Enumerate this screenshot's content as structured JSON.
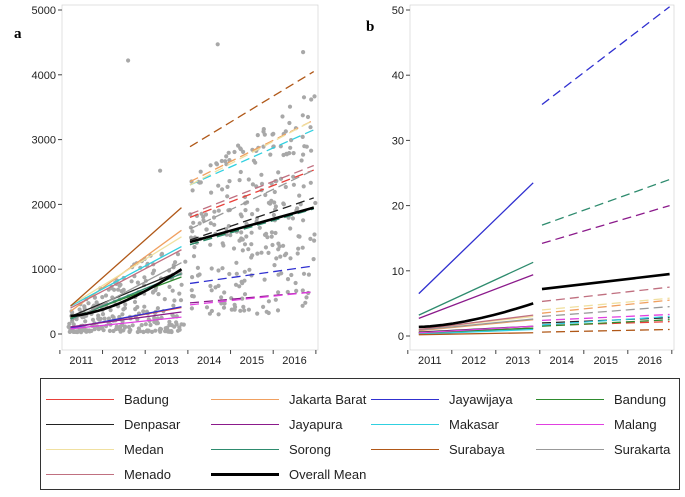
{
  "chart_data": [
    {
      "type": "scatter",
      "panel_label": "a",
      "title": "",
      "xlabel": "",
      "ylabel": "",
      "x_ticks": [
        "2011",
        "2012",
        "2013",
        "2014",
        "2015",
        "2016"
      ],
      "y_ticks": [
        "0",
        "1000",
        "2000",
        "3000",
        "4000",
        "5000"
      ],
      "ylim": [
        0,
        5000
      ],
      "xlim": [
        2010.55,
        2016.55
      ],
      "break_at": 2013.5,
      "grid": false,
      "series": [
        {
          "name": "Badung",
          "color": "#e8403a",
          "pre": [
            90,
            410
          ],
          "post": [
            1800,
            2530
          ]
        },
        {
          "name": "Jakarta Barat",
          "color": "#f0a060",
          "pre": [
            350,
            1600
          ],
          "post": [
            2350,
            3300
          ]
        },
        {
          "name": "Jayawijaya",
          "color": "#3030d0",
          "pre": [
            90,
            420
          ],
          "post": [
            780,
            1050
          ]
        },
        {
          "name": "Bandung",
          "color": "#2e8b2e",
          "pre": [
            240,
            880
          ],
          "post": [
            1380,
            1960
          ]
        },
        {
          "name": "Denpasar",
          "color": "#222222",
          "pre": [
            270,
            980
          ],
          "post": [
            1450,
            2100
          ]
        },
        {
          "name": "Jayapura",
          "color": "#8b1a8b",
          "pre": [
            110,
            340
          ],
          "post": [
            480,
            650
          ]
        },
        {
          "name": "Makasar",
          "color": "#30d0e0",
          "pre": [
            430,
            1350
          ],
          "post": [
            2300,
            3150
          ]
        },
        {
          "name": "Malang",
          "color": "#e040e0",
          "pre": [
            80,
            260
          ],
          "post": [
            450,
            650
          ]
        },
        {
          "name": "Medan",
          "color": "#f0e0a0",
          "pre": [
            440,
            1500
          ],
          "post": [
            2300,
            3300
          ]
        },
        {
          "name": "Sorong",
          "color": "#2e8b6e",
          "pre": [
            230,
            930
          ],
          "post": [
            1380,
            1930
          ]
        },
        {
          "name": "Surabaya",
          "color": "#b05818",
          "pre": [
            430,
            1950
          ],
          "post": [
            2890,
            4050
          ]
        },
        {
          "name": "Surakarta",
          "color": "#999999",
          "pre": [
            200,
            1100
          ],
          "post": [
            1620,
            2530
          ]
        },
        {
          "name": "Menado",
          "color": "#c07080",
          "pre": [
            400,
            1300
          ],
          "post": [
            1850,
            2600
          ]
        },
        {
          "name": "Overall Mean",
          "color": "#000000",
          "pre": [
            280,
            1000
          ],
          "post": [
            1420,
            1950
          ],
          "curved": true
        }
      ]
    },
    {
      "type": "line",
      "panel_label": "b",
      "title": "",
      "xlabel": "",
      "ylabel": "",
      "x_ticks": [
        "2011",
        "2012",
        "2013",
        "2014",
        "2015",
        "2016"
      ],
      "y_ticks": [
        "0",
        "10",
        "20",
        "30",
        "40",
        "50"
      ],
      "ylim": [
        0,
        50
      ],
      "xlim": [
        2010.55,
        2016.55
      ],
      "break_at": 2013.5,
      "grid": false,
      "series": [
        {
          "name": "Badung",
          "color": "#e8403a",
          "pre": [
            0.4,
            1.2
          ],
          "post": [
            1.6,
            2.2
          ]
        },
        {
          "name": "Jakarta Barat",
          "color": "#f0a060",
          "pre": [
            0.8,
            2.5
          ],
          "post": [
            3.5,
            5.5
          ]
        },
        {
          "name": "Jayawijaya",
          "color": "#3030d0",
          "pre": [
            6.5,
            23.5
          ],
          "post": [
            35.5,
            50.5
          ]
        },
        {
          "name": "Bandung",
          "color": "#2e8b2e",
          "pre": [
            0.5,
            1.2
          ],
          "post": [
            1.5,
            2.5
          ]
        },
        {
          "name": "Denpasar",
          "color": "#222222",
          "pre": [
            0.6,
            1.5
          ],
          "post": [
            2.0,
            2.8
          ]
        },
        {
          "name": "Jayapura",
          "color": "#8b1a8b",
          "pre": [
            2.7,
            9.4
          ],
          "post": [
            14.2,
            20.0
          ]
        },
        {
          "name": "Makasar",
          "color": "#30d0e0",
          "pre": [
            0.3,
            1.0
          ],
          "post": [
            1.7,
            3.0
          ]
        },
        {
          "name": "Malang",
          "color": "#e040e0",
          "pre": [
            0.5,
            1.5
          ],
          "post": [
            2.4,
            3.3
          ]
        },
        {
          "name": "Medan",
          "color": "#f0e0a0",
          "pre": [
            1.0,
            3.0
          ],
          "post": [
            4.0,
            5.8
          ]
        },
        {
          "name": "Sorong",
          "color": "#2e8b6e",
          "pre": [
            3.2,
            11.3
          ],
          "post": [
            17.0,
            24.0
          ]
        },
        {
          "name": "Surabaya",
          "color": "#b05818",
          "pre": [
            0.2,
            0.5
          ],
          "post": [
            0.6,
            1.0
          ]
        },
        {
          "name": "Surakarta",
          "color": "#999999",
          "pre": [
            0.9,
            2.6
          ],
          "post": [
            3.0,
            4.5
          ]
        },
        {
          "name": "Menado",
          "color": "#c07080",
          "pre": [
            1.0,
            3.2
          ],
          "post": [
            5.3,
            7.5
          ]
        },
        {
          "name": "Overall Mean",
          "color": "#000000",
          "pre": [
            1.4,
            5.0
          ],
          "post": [
            7.2,
            9.5
          ],
          "curved": true
        }
      ]
    }
  ],
  "legend": {
    "entries": [
      {
        "label": "Badung",
        "color": "#e8403a"
      },
      {
        "label": "Jakarta Barat",
        "color": "#f0a060"
      },
      {
        "label": "Jayawijaya",
        "color": "#3030d0"
      },
      {
        "label": "Bandung",
        "color": "#2e8b2e"
      },
      {
        "label": "Denpasar",
        "color": "#222222"
      },
      {
        "label": "Jayapura",
        "color": "#8b1a8b"
      },
      {
        "label": "Makasar",
        "color": "#30d0e0"
      },
      {
        "label": "Malang",
        "color": "#e040e0"
      },
      {
        "label": "Medan",
        "color": "#f0e0a0"
      },
      {
        "label": "Sorong",
        "color": "#2e8b6e"
      },
      {
        "label": "Surabaya",
        "color": "#b05818"
      },
      {
        "label": "Surakarta",
        "color": "#999999"
      },
      {
        "label": "Menado",
        "color": "#c07080"
      },
      {
        "label": "Overall Mean",
        "color": "#000000",
        "bold": true
      }
    ]
  }
}
